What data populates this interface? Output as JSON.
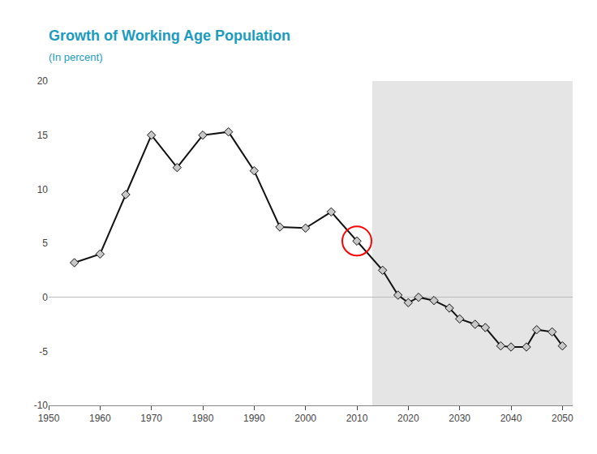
{
  "chart_data": {
    "type": "line",
    "title": "Growth of Working Age Population",
    "subtitle": "(In percent)",
    "title_color": "#1a9bbf",
    "subtitle_color": "#1a9bbf",
    "x": [
      1955,
      1960,
      1965,
      1970,
      1975,
      1980,
      1985,
      1990,
      1995,
      2000,
      2005,
      2010,
      2015,
      2018,
      2020,
      2022,
      2025,
      2028,
      2030,
      2033,
      2035,
      2038,
      2040,
      2043,
      2045,
      2048,
      2050
    ],
    "series": [
      {
        "color": "#111111",
        "marker": "diamond",
        "marker_color": "#c8c8c8",
        "values": [
          3.2,
          4.0,
          9.5,
          15.0,
          12.0,
          15.0,
          15.3,
          11.7,
          6.5,
          6.4,
          7.9,
          5.2,
          2.5,
          0.2,
          -0.5,
          0.0,
          -0.3,
          -1.0,
          -2.0,
          -2.5,
          -2.8,
          -4.5,
          -4.6,
          -4.6,
          -3.0,
          -3.2,
          -4.5
        ]
      }
    ],
    "xlim": [
      1950,
      2052
    ],
    "ylim": [
      -10,
      20
    ],
    "xticks": [
      1950,
      1960,
      1970,
      1980,
      1990,
      2000,
      2010,
      2020,
      2030,
      2040,
      2050
    ],
    "yticks": [
      -10,
      -5,
      0,
      5,
      10,
      15,
      20
    ],
    "grid": false,
    "shaded_start": 2013,
    "shaded_color": "#e5e5e5",
    "zero_line_color": "#bbbbbb",
    "circle": {
      "x": 2010,
      "y": 5.2,
      "color": "red"
    }
  }
}
